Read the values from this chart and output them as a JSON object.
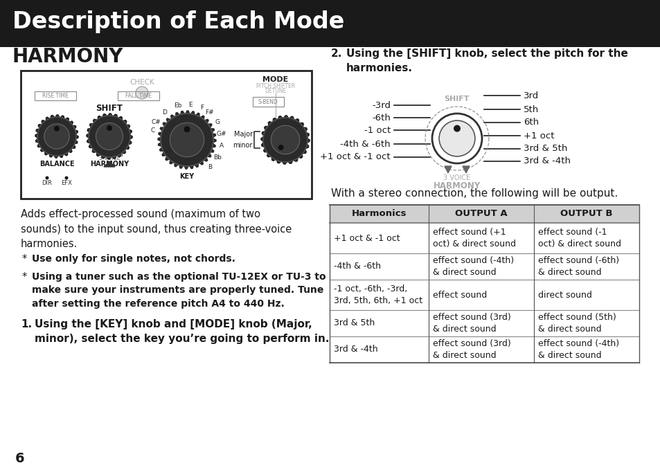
{
  "title": "Description of Each Mode",
  "title_bg": "#1a1a1a",
  "title_color": "#ffffff",
  "section_title": "HARMONY",
  "body_bg": "#ffffff",
  "page_number": "6",
  "para1": "Adds effect-processed sound (maximum of two\nsounds) to the input sound, thus creating three-voice\nharmonies.",
  "bullet1": "Use only for single notes, not chords.",
  "bullet2": "Using a tuner such as the optional TU-12EX or TU-3 to\nmake sure your instruments are properly tuned. Tune\nafter setting the reference pitch A4 to 440 Hz.",
  "step1_num": "1.",
  "step1_text": "Using the [KEY] knob and [MODE] knob (Major,\nminor), select the key you’re going to perform in.",
  "step2_num": "2.",
  "step2_text": "Using the [SHIFT] knob, select the pitch for the\nharmonies.",
  "left_labels": [
    "-3rd",
    "-6th",
    "-1 oct",
    "-4th & -6th",
    "+1 oct & -1 oct"
  ],
  "right_labels": [
    "3rd",
    "5th",
    "6th",
    "+1 oct",
    "3rd & 5th",
    "3rd & -4th"
  ],
  "stereo_text": "With a stereo connection, the following will be output.",
  "table_headers": [
    "Harmonics",
    "OUTPUT A",
    "OUTPUT B"
  ],
  "table_rows": [
    [
      "+1 oct & -1 oct",
      "effect sound (+1\noct) & direct sound",
      "effect sound (-1\noct) & direct sound"
    ],
    [
      "-4th & -6th",
      "effect sound (-4th)\n& direct sound",
      "effect sound (-6th)\n& direct sound"
    ],
    [
      "-1 oct, -6th, -3rd,\n3rd, 5th, 6th, +1 oct",
      "effect sound",
      "direct sound"
    ],
    [
      "3rd & 5th",
      "effect sound (3rd)\n& direct sound",
      "effect sound (5th)\n& direct sound"
    ],
    [
      "3rd & -4th",
      "effect sound (3rd)\n& direct sound",
      "effect sound (-4th)\n& direct sound"
    ]
  ],
  "knob_notes": [
    [
      "F",
      -65
    ],
    [
      "F#",
      -50
    ],
    [
      "G",
      -30
    ],
    [
      "G#",
      -10
    ],
    [
      "E",
      -85
    ],
    [
      "Eb",
      -105
    ],
    [
      "D",
      -130
    ],
    [
      "C#",
      -150
    ],
    [
      "C",
      -165
    ],
    [
      "A",
      10
    ],
    [
      "Bb",
      30
    ],
    [
      "B",
      50
    ]
  ]
}
